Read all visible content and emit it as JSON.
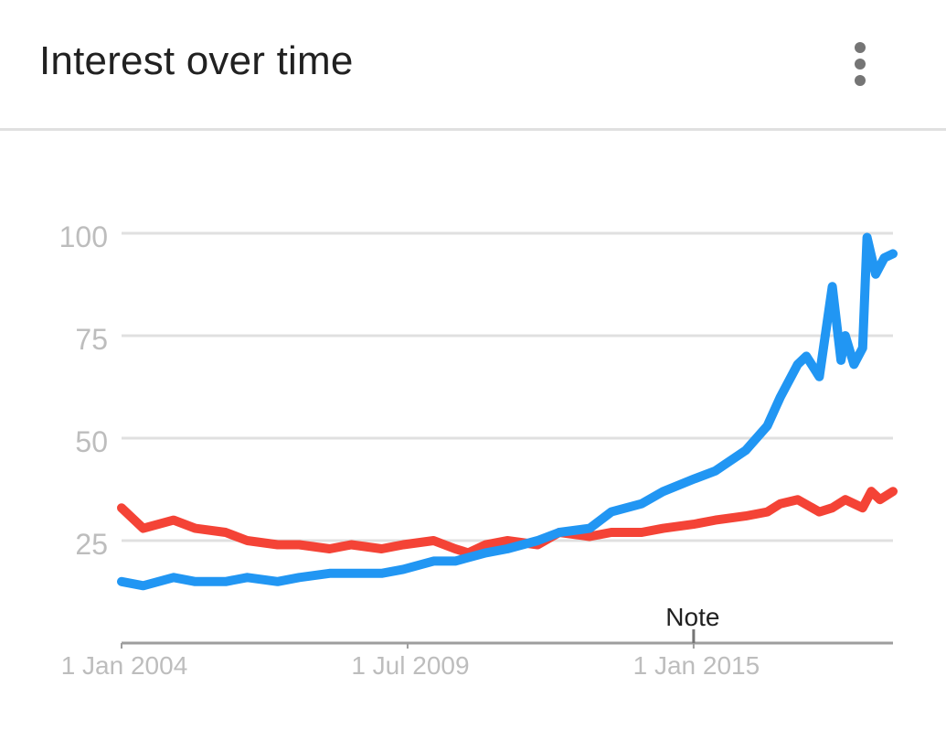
{
  "header": {
    "title": "Interest over time",
    "menu_icon": "more-vert-icon"
  },
  "chart_data": {
    "type": "line",
    "title": "Interest over time",
    "xlabel": "",
    "ylabel": "",
    "ylim": [
      0,
      100
    ],
    "yticks": [
      100,
      75,
      50,
      25
    ],
    "x_start": "2004-01",
    "x_end": "2018-11",
    "x_tick_labels": [
      "1 Jan 2004",
      "1 Jul 2009",
      "1 Jan 2015"
    ],
    "x_tick_dates": [
      "2004-01",
      "2009-07",
      "2015-01"
    ],
    "grid": true,
    "legend": "none",
    "annotation": {
      "label": "Note",
      "date": "2015-01"
    },
    "series": [
      {
        "color": "#2196f3",
        "points": [
          [
            "2004-01",
            15
          ],
          [
            "2004-06",
            14
          ],
          [
            "2005-01",
            16
          ],
          [
            "2005-06",
            15
          ],
          [
            "2006-01",
            15
          ],
          [
            "2006-06",
            16
          ],
          [
            "2007-01",
            15
          ],
          [
            "2007-06",
            16
          ],
          [
            "2008-01",
            17
          ],
          [
            "2008-06",
            17
          ],
          [
            "2009-01",
            17
          ],
          [
            "2009-06",
            18
          ],
          [
            "2010-01",
            20
          ],
          [
            "2010-06",
            20
          ],
          [
            "2011-01",
            22
          ],
          [
            "2011-06",
            23
          ],
          [
            "2012-01",
            25
          ],
          [
            "2012-06",
            27
          ],
          [
            "2013-01",
            28
          ],
          [
            "2013-06",
            32
          ],
          [
            "2014-01",
            34
          ],
          [
            "2014-06",
            37
          ],
          [
            "2015-01",
            40
          ],
          [
            "2015-06",
            42
          ],
          [
            "2016-01",
            47
          ],
          [
            "2016-06",
            53
          ],
          [
            "2016-09",
            60
          ],
          [
            "2017-01",
            68
          ],
          [
            "2017-03",
            70
          ],
          [
            "2017-06",
            65
          ],
          [
            "2017-09",
            87
          ],
          [
            "2017-11",
            69
          ],
          [
            "2017-12",
            75
          ],
          [
            "2018-02",
            68
          ],
          [
            "2018-04",
            72
          ],
          [
            "2018-05",
            99
          ],
          [
            "2018-07",
            90
          ],
          [
            "2018-09",
            94
          ],
          [
            "2018-11",
            95
          ]
        ]
      },
      {
        "color": "#f44336",
        "points": [
          [
            "2004-01",
            33
          ],
          [
            "2004-06",
            28
          ],
          [
            "2005-01",
            30
          ],
          [
            "2005-06",
            28
          ],
          [
            "2006-01",
            27
          ],
          [
            "2006-06",
            25
          ],
          [
            "2007-01",
            24
          ],
          [
            "2007-06",
            24
          ],
          [
            "2008-01",
            23
          ],
          [
            "2008-06",
            24
          ],
          [
            "2009-01",
            23
          ],
          [
            "2009-06",
            24
          ],
          [
            "2010-01",
            25
          ],
          [
            "2010-06",
            23
          ],
          [
            "2010-09",
            22
          ],
          [
            "2011-01",
            24
          ],
          [
            "2011-06",
            25
          ],
          [
            "2012-01",
            24
          ],
          [
            "2012-06",
            27
          ],
          [
            "2013-01",
            26
          ],
          [
            "2013-06",
            27
          ],
          [
            "2014-01",
            27
          ],
          [
            "2014-06",
            28
          ],
          [
            "2015-01",
            29
          ],
          [
            "2015-06",
            30
          ],
          [
            "2016-01",
            31
          ],
          [
            "2016-06",
            32
          ],
          [
            "2016-09",
            34
          ],
          [
            "2017-01",
            35
          ],
          [
            "2017-06",
            32
          ],
          [
            "2017-09",
            33
          ],
          [
            "2017-12",
            35
          ],
          [
            "2018-02",
            34
          ],
          [
            "2018-04",
            33
          ],
          [
            "2018-06",
            37
          ],
          [
            "2018-08",
            35
          ],
          [
            "2018-11",
            37
          ]
        ]
      }
    ]
  }
}
